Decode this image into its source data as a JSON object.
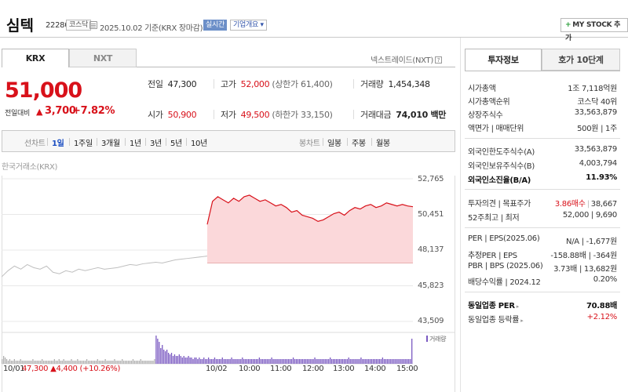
{
  "header": {
    "name": "심텍",
    "code": "222800",
    "market": "코스닥",
    "date_text": "2025.10.02 기준(KRX 장마감)",
    "realtime": "실시간",
    "company_info": "기업개요 ▾",
    "mystock": "MY STOCK 추가",
    "mystock_plus": "+"
  },
  "tabs": {
    "krx": "KRX",
    "nxt": "NXT",
    "nextrade": "넥스트레이드(NXT)",
    "help": "?"
  },
  "quote": {
    "price": "51,000",
    "change_label": "전일대비",
    "change_arrow": "▲",
    "change": "3,700",
    "change_pct": "+7.82%"
  },
  "stats": {
    "prev_label": "전일",
    "prev": "47,300",
    "high_label": "고가",
    "high": "52,000",
    "upper": "(상한가 61,400)",
    "volume_label": "거래량",
    "volume": "1,454,348",
    "open_label": "시가",
    "open": "50,900",
    "low_label": "저가",
    "low": "49,500",
    "lower": "(하한가 33,150)",
    "amount_label": "거래대금",
    "amount": "74,010 백만"
  },
  "period_bar": {
    "line_label": "선차트",
    "line_items": [
      "1일",
      "1주일",
      "3개월",
      "1년",
      "3년",
      "5년",
      "10년"
    ],
    "active": "1일",
    "candle_label": "봉차트",
    "candle_items": [
      "일봉",
      "주봉",
      "월봉"
    ]
  },
  "chart": {
    "source": "한국거래소(KRX)",
    "volume_label": "거래량",
    "prev_date": "10/01",
    "prev_info": "47,300 ▲4,400 (+10.26%)",
    "colors": {
      "up": "#d8111a",
      "fill": "#fbd8da",
      "prev": "#bfbfbf",
      "volume": "#7b5ac2",
      "grid": "#e8e8e8"
    }
  },
  "chart_data": {
    "type": "line",
    "y_ticks": [
      "52,765",
      "50,451",
      "48,137",
      "45,823",
      "43,509"
    ],
    "ylim": [
      43509,
      52765
    ],
    "x_ticks": [
      "10/02",
      "10:00",
      "11:00",
      "12:00",
      "13:00",
      "14:00",
      "15:00"
    ],
    "series": [
      {
        "values": [
          46400,
          46800,
          47100,
          46900,
          47200,
          47000,
          46900,
          47100,
          46700,
          46600,
          46800,
          46700,
          46900,
          46800,
          46900,
          47000,
          46900,
          46950,
          47000,
          47100,
          47200,
          47150,
          47250,
          47300,
          47350,
          47300,
          47400,
          47500,
          47550,
          47600,
          47650,
          47700,
          47750
        ]
      },
      {
        "values": [
          49800,
          51300,
          51600,
          51400,
          51200,
          51500,
          51300,
          51600,
          51700,
          51500,
          51300,
          51400,
          51200,
          51000,
          51100,
          50900,
          50600,
          50700,
          50400,
          50300,
          50200,
          50000,
          50100,
          50300,
          50500,
          50600,
          50400,
          50700,
          50900,
          50800,
          51000,
          51100,
          50900,
          51000,
          51200,
          51100,
          51000,
          51100,
          51000,
          50950
        ]
      }
    ],
    "volume": [
      3,
      5,
      4,
      3,
      2,
      3,
      2,
      2,
      3,
      2,
      2,
      2,
      3,
      2,
      2,
      2,
      2,
      2,
      2,
      2,
      3,
      2,
      2,
      2,
      2,
      2,
      3,
      2,
      2,
      2,
      2,
      2,
      2,
      2,
      3,
      2,
      2,
      3,
      2,
      2,
      3,
      2,
      2,
      2,
      2,
      3,
      2,
      2,
      2,
      3,
      2,
      2,
      2,
      2,
      2,
      3,
      2,
      2,
      2,
      2,
      2,
      2,
      3,
      2,
      2,
      2,
      2,
      3,
      2,
      2,
      2,
      2,
      2,
      3,
      2,
      2,
      2,
      2,
      3,
      2,
      2,
      2,
      2,
      2,
      2,
      3,
      2,
      2,
      2,
      2,
      3,
      2,
      2,
      2,
      2,
      2,
      2,
      2,
      2,
      3,
      18,
      16,
      14,
      10,
      12,
      9,
      8,
      9,
      7,
      6,
      7,
      5,
      6,
      5,
      5,
      6,
      5,
      4,
      5,
      4,
      4,
      5,
      4,
      4,
      3,
      4,
      4,
      3,
      4,
      3,
      3,
      4,
      3,
      3,
      4,
      3,
      3,
      3,
      4,
      3,
      3,
      3,
      3,
      4,
      3,
      3,
      3,
      3,
      3,
      4,
      3,
      3,
      3,
      3,
      3,
      3,
      4,
      3,
      3,
      3,
      3,
      3,
      3,
      3,
      3,
      3,
      3,
      4,
      3,
      3,
      3,
      3,
      3,
      3,
      3,
      4,
      3,
      3,
      3,
      3,
      3,
      3,
      3,
      3,
      3,
      3,
      3,
      3,
      3,
      4,
      3,
      3,
      3,
      3,
      3,
      3,
      3,
      3,
      3,
      3,
      3,
      3,
      3,
      4,
      3,
      3,
      3,
      3,
      3,
      3,
      3,
      3,
      3,
      4,
      3,
      3,
      3,
      3,
      3,
      3,
      3,
      3,
      3,
      3,
      3,
      4,
      3,
      3,
      3,
      3,
      3,
      3,
      3,
      4,
      3,
      3,
      3,
      3,
      3,
      3,
      3,
      3,
      3,
      3,
      3,
      3,
      3,
      4,
      3,
      3,
      3,
      3,
      3,
      3,
      3,
      3,
      3,
      3,
      3,
      3,
      3,
      3,
      3,
      3,
      3,
      3,
      16
    ]
  },
  "right_panel": {
    "tab_invest": "투자정보",
    "tab_ask": "호가 10단계",
    "rows": [
      {
        "k": "시가총액",
        "v": "1조 7,118억원",
        "bold": false
      },
      {
        "k": "시가총액순위",
        "v": "코스닥 40위"
      },
      {
        "k": "상장주식수",
        "v": "33,563,879"
      },
      {
        "k": "액면가 | 매매단위",
        "v": "500원 | 1주"
      },
      {
        "k": "외국인한도주식수(A)",
        "v": "33,563,879"
      },
      {
        "k": "외국인보유주식수(B)",
        "v": "4,003,794"
      },
      {
        "k": "외국인소진율(B/A)",
        "v": "11.93%",
        "bold": true
      },
      {
        "k": "투자의견 | 목표주가",
        "v1": "3.86매수",
        "v2": "38,667"
      },
      {
        "k": "52주최고 | 최저",
        "v": "52,000 | 9,690"
      },
      {
        "k": "PER | EPS(2025.06)",
        "v": "N/A | -1,677원"
      },
      {
        "k": "추정PER | EPS",
        "v": "-158.88배 | -364원"
      },
      {
        "k": "PBR | BPS (2025.06)",
        "v": "3.73배 | 13,682원"
      },
      {
        "k": "배당수익률 | 2024.12",
        "v": "0.20%"
      },
      {
        "k": "동일업종 PER",
        "v": "70.88배",
        "bold": true
      },
      {
        "k": "동일업종 등락률",
        "v": "+2.12%"
      }
    ]
  }
}
